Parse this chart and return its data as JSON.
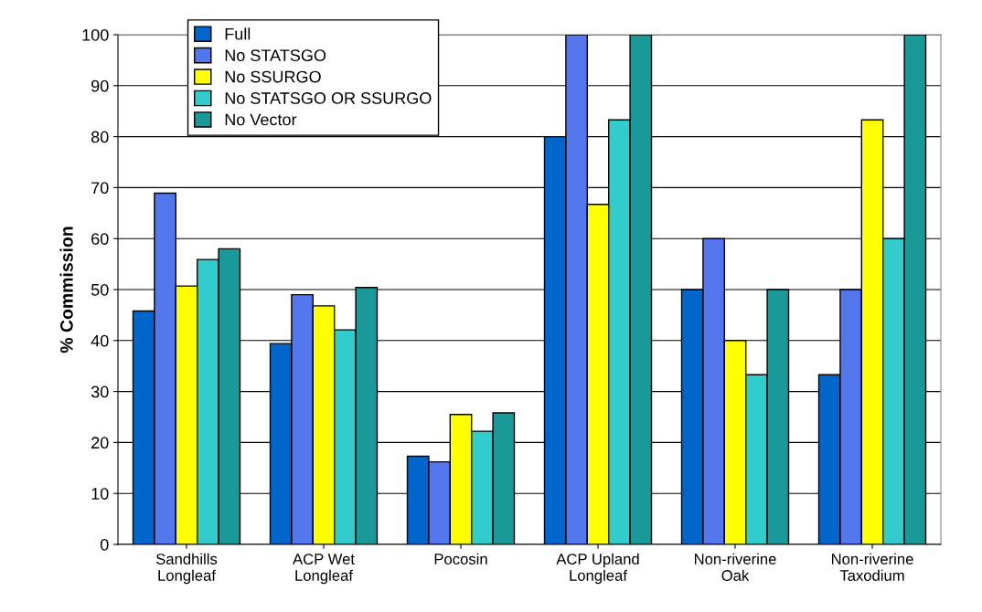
{
  "chart_data": {
    "type": "bar",
    "ylabel": "% Commission",
    "categories": [
      "Sandhills\nLongleaf",
      "ACP Wet\nLongleaf",
      "Pocosin",
      "ACP Upland\nLongleaf",
      "Non-riverine\nOak",
      "Non-riverine\nTaxodium"
    ],
    "series": [
      {
        "name": "Full",
        "color": "#0066cc",
        "values": [
          45.8,
          39.4,
          17.3,
          80,
          50,
          33.3
        ]
      },
      {
        "name": "No STATSGO",
        "color": "#5577ee",
        "values": [
          68.9,
          49.0,
          16.2,
          100,
          60,
          50
        ]
      },
      {
        "name": "No SSURGO",
        "color": "#ffff00",
        "values": [
          50.7,
          46.8,
          25.5,
          66.7,
          40,
          83.3
        ]
      },
      {
        "name": "No STATSGO OR SSURGO",
        "color": "#33cccc",
        "values": [
          55.9,
          42.1,
          22.2,
          83.3,
          33.3,
          60
        ]
      },
      {
        "name": "No Vector",
        "color": "#1a9999",
        "values": [
          58,
          50.4,
          25.8,
          100,
          50,
          100
        ]
      }
    ],
    "ylim": [
      0,
      100
    ],
    "yticks": [
      0,
      10,
      20,
      30,
      40,
      50,
      60,
      70,
      80,
      90,
      100
    ],
    "grid": "y",
    "legend": "top left"
  }
}
